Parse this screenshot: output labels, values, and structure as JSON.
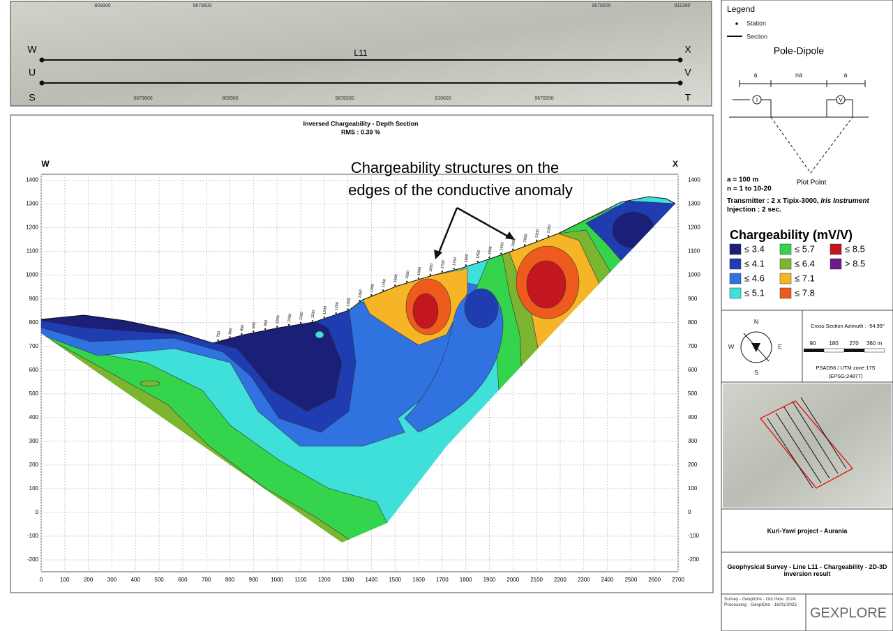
{
  "chart_data": {
    "type": "contour",
    "title": "Inversed Chargeability - Depth Section",
    "subtitle": "RMS : 0.39 %",
    "left_label": "W",
    "right_label": "X",
    "annotation": [
      "Chargeability structures on the",
      "edges of the conductive anomaly"
    ],
    "xlim": [
      0,
      2700
    ],
    "ylim": [
      -250,
      1425
    ],
    "xticks": [
      0,
      100,
      200,
      300,
      400,
      500,
      600,
      700,
      800,
      900,
      1000,
      1100,
      1200,
      1300,
      1400,
      1500,
      1600,
      1700,
      1800,
      1900,
      2000,
      2100,
      2200,
      2300,
      2400,
      2500,
      2600,
      2700
    ],
    "yticks": [
      -200,
      -100,
      0,
      100,
      200,
      300,
      400,
      500,
      600,
      700,
      800,
      900,
      1000,
      1100,
      1200,
      1300,
      1400
    ],
    "grid": true,
    "stations": [
      750,
      800,
      850,
      900,
      950,
      1000,
      1050,
      1100,
      1150,
      1200,
      1250,
      1300,
      1350,
      1400,
      1450,
      1500,
      1550,
      1600,
      1650,
      1700,
      1750,
      1800,
      1850,
      1900,
      1950,
      2000,
      2050,
      2100,
      2150
    ]
  },
  "map_strip": {
    "line_name": "L11",
    "left_labels": [
      "W",
      "U",
      "S"
    ],
    "right_labels": [
      "X",
      "V",
      "T"
    ],
    "top_coords": [
      "809900",
      "9679600",
      "9678200",
      "811300"
    ],
    "bottom_coords": [
      "9679600",
      "809900",
      "9678300",
      "810600",
      "9678200"
    ]
  },
  "sidebar": {
    "legend_title": "Legend",
    "station_label": "Station",
    "section_label": "Section",
    "array_title": "Pole-Dipole",
    "spacing_labels": [
      "a",
      "na",
      "a"
    ],
    "plot_point": "Plot Point",
    "params": [
      "a = 100 m",
      "n = 1 to 10-20"
    ],
    "transmitter": "Transmitter : 2 x Tipix-3000, ",
    "instrument": "Iris Instrument",
    "injection": "Injection : 2 sec.",
    "scale_title": "Chargeability (mV/V)",
    "classes": [
      {
        "label": "≤ 3.4",
        "color": "#1a1f78"
      },
      {
        "label": "≤ 4.1",
        "color": "#1f3cb0"
      },
      {
        "label": "≤ 4.6",
        "color": "#2f72e0"
      },
      {
        "label": "≤ 5.1",
        "color": "#3fe0da"
      },
      {
        "label": "≤ 5.7",
        "color": "#34d44c"
      },
      {
        "label": "≤ 6.4",
        "color": "#7cb52f"
      },
      {
        "label": "≤ 7.1",
        "color": "#f5b526"
      },
      {
        "label": "≤ 7.8",
        "color": "#ee5b1d"
      },
      {
        "label": "≤ 8.5",
        "color": "#c4161e"
      },
      {
        "label": "> 8.5",
        "color": "#6b1b8c"
      }
    ],
    "compass": [
      "N",
      "S",
      "E",
      "W"
    ],
    "azimuth": "Cross Section Azimuth : -54.99°",
    "scale_labels": [
      "90",
      "180",
      "270",
      "360 m"
    ],
    "crs": [
      "PSAD56 / UTM zone 17S",
      "(EPSG:24877)"
    ],
    "project": "Kuri-Yawi project - Aurania",
    "survey_title": "Geophysical Survey - Line L11 - Chargeability - 2D-3D inversion result",
    "credits": [
      "Survey - GexplOre - Oct./Nov. 2024",
      "Processing - GexplOre - 16/01/2025"
    ],
    "logo": "GEXPLORE"
  }
}
